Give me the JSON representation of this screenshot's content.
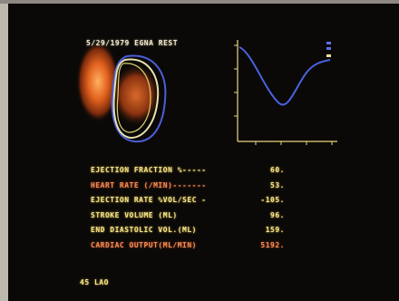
{
  "header": {
    "title": "5/29/1979 EGNA REST"
  },
  "table": {
    "rows": [
      [
        "EJECTION FRACTION %-----",
        "60."
      ],
      [
        "HEART RATE (/MIN)-------",
        "53."
      ],
      [
        "EJECTION RATE %VOL/SEC -",
        "-105."
      ],
      [
        "STROKE VOLUME (ML)",
        "96."
      ],
      [
        "END DIASTOLIC VOL.(ML)",
        "159."
      ],
      [
        "CARDIAC OUTPUT(ML/MIN)",
        "5192."
      ]
    ]
  },
  "footer": {
    "view": "45 LAO"
  }
}
